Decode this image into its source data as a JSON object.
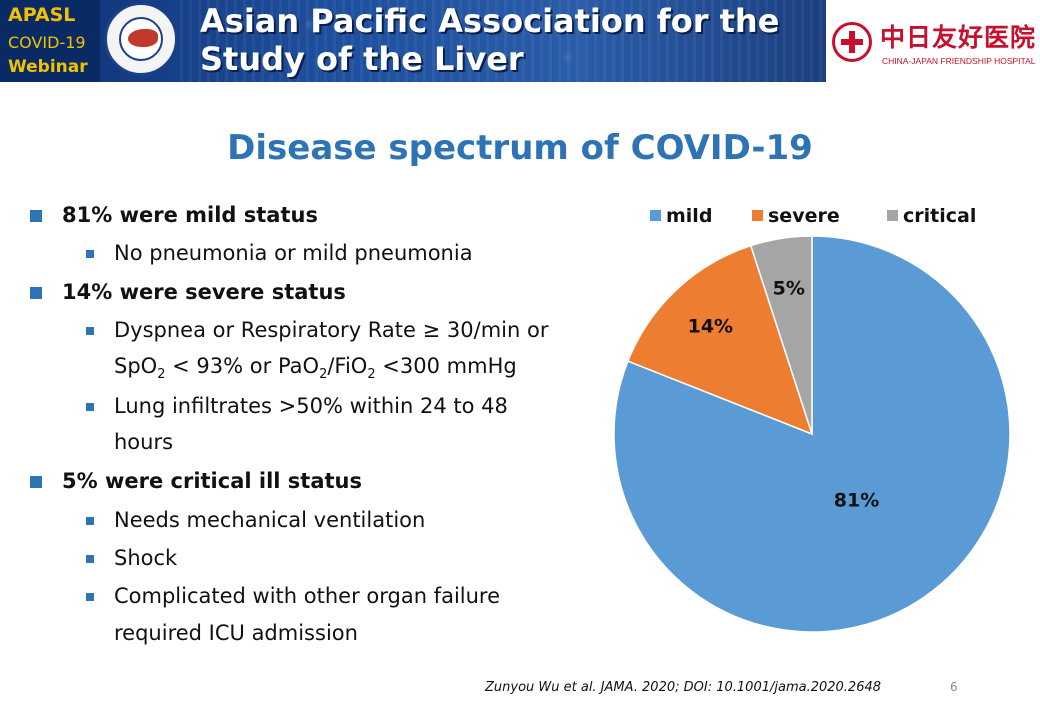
{
  "banner": {
    "apasl": "APASL",
    "covid": "COVID-19",
    "webinar": "Webinar",
    "title_line1": "Asian Pacific Association for the",
    "title_line2": "Study of the Liver"
  },
  "hospital": {
    "name_cn": "中日友好医院",
    "name_en": "CHINA-JAPAN FRIENDSHIP HOSPITAL"
  },
  "slide": {
    "title": "Disease spectrum of COVID-19",
    "bullets": [
      {
        "text": "81% were mild status",
        "sub": [
          "No pneumonia or mild pneumonia"
        ]
      },
      {
        "text": "14% were severe status",
        "sub": [
          "Dyspnea or Respiratory Rate ≥ 30/min or",
          "Lung infiltrates >50% within 24 to 48",
          "hours"
        ],
        "spo2_line": {
          "a": "SpO",
          "a_sub": "2",
          "b": " < 93% or PaO",
          "b_sub": "2",
          "c": "/FiO",
          "c_sub": "2",
          "d": " <300 mmHg"
        }
      },
      {
        "text": "5% were critical ill status",
        "sub": [
          "Needs mechanical ventilation",
          "Shock",
          "Complicated with other organ failure",
          "required ICU admission"
        ]
      }
    ],
    "citation": "Zunyou Wu et al. JAMA. 2020; DOI: 10.1001/jama.2020.2648",
    "page_number": "6"
  },
  "chart_data": {
    "type": "pie",
    "categories": [
      "mild",
      "severe",
      "critical"
    ],
    "values": [
      81,
      14,
      5
    ],
    "labels": [
      "81%",
      "14%",
      "5%"
    ],
    "colors": [
      "#5b9bd5",
      "#ed7d31",
      "#a5a5a5"
    ],
    "legend_position": "top"
  }
}
